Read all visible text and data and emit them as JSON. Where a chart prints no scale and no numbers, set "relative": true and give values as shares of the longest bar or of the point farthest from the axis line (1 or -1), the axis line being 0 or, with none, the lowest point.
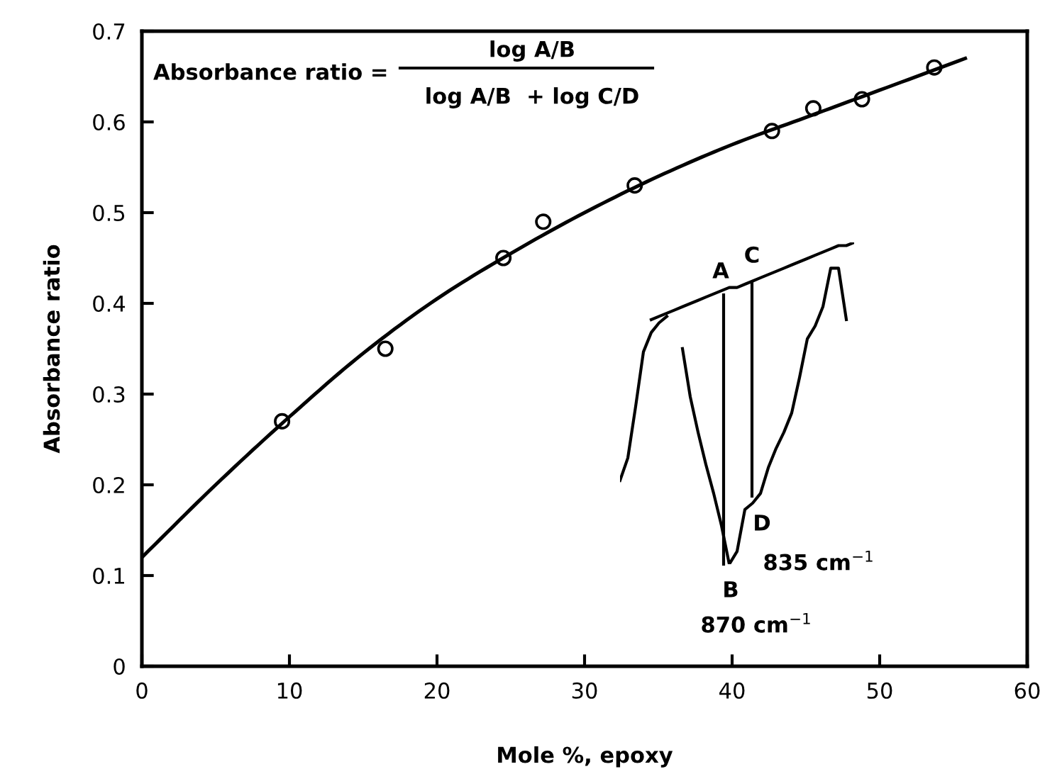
{
  "chart_data": [
    {
      "type": "scatter",
      "xlabel": "Mole %, epoxy",
      "ylabel": "Absorbance ratio",
      "xlim": [
        0,
        60
      ],
      "ylim": [
        0,
        0.7
      ],
      "xticks": [
        0,
        10,
        20,
        30,
        40,
        50,
        60
      ],
      "yticks": [
        0,
        0.1,
        0.2,
        0.3,
        0.4,
        0.5,
        0.6,
        0.7
      ],
      "grid": false,
      "legend": false,
      "series": [
        {
          "color": "#000000",
          "marker": "circle",
          "x": [
            9.5,
            16.5,
            24.5,
            27.2,
            33.4,
            42.7,
            45.5,
            48.8,
            53.7
          ],
          "values": [
            0.27,
            0.35,
            0.45,
            0.49,
            0.53,
            0.59,
            0.615,
            0.625,
            0.66
          ]
        },
        {
          "type": "line",
          "color": "#000000",
          "marker": "none",
          "line_style": "solid",
          "x": [
            0,
            5,
            10,
            15,
            20,
            25,
            30,
            35,
            40,
            45,
            50,
            55.8
          ],
          "values": [
            0.12,
            0.2,
            0.275,
            0.345,
            0.405,
            0.455,
            0.5,
            0.54,
            0.575,
            0.605,
            0.635,
            0.67
          ]
        }
      ],
      "annotations": [
        "Absorbance ratio =",
        "log A/B",
        "log A/B  + log C/D"
      ]
    },
    {
      "type": "line",
      "relative": true,
      "grid": false,
      "legend": false,
      "categories": [
        null,
        null,
        null,
        null,
        null,
        null,
        null,
        null,
        null,
        null,
        null,
        null,
        null,
        null,
        null,
        null,
        null,
        null,
        null,
        null,
        null,
        null,
        null,
        null,
        null,
        null,
        null,
        null,
        null,
        null,
        null
      ],
      "series": [
        {
          "color": "#000000",
          "values": [
            0.26,
            0.33,
            0.49,
            0.66,
            0.72,
            0.75,
            0.77,
            null,
            0.67,
            0.52,
            0.41,
            0.31,
            0.22,
            0.12,
            0,
            0.04,
            0.17,
            0.19,
            0.22,
            0.3,
            0.36,
            0.41,
            0.47,
            0.58,
            0.7,
            0.74,
            0.8,
            0.92,
            0.92,
            0.76,
            null
          ]
        },
        {
          "color": "#000000",
          "values": [
            null,
            null,
            null,
            null,
            0.76,
            0.77,
            0.78,
            0.79,
            0.8,
            0.81,
            0.82,
            0.83,
            0.84,
            0.85,
            0.86,
            0.86,
            0.87,
            0.88,
            0.89,
            0.9,
            0.91,
            0.92,
            0.93,
            0.94,
            0.95,
            0.96,
            0.97,
            0.98,
            0.99,
            0.99,
            1
          ]
        }
      ],
      "annotations": [
        "A",
        "C",
        "B",
        "D",
        "835 cm$^{−1}$",
        "870 cm$^{−1}$"
      ]
    }
  ]
}
